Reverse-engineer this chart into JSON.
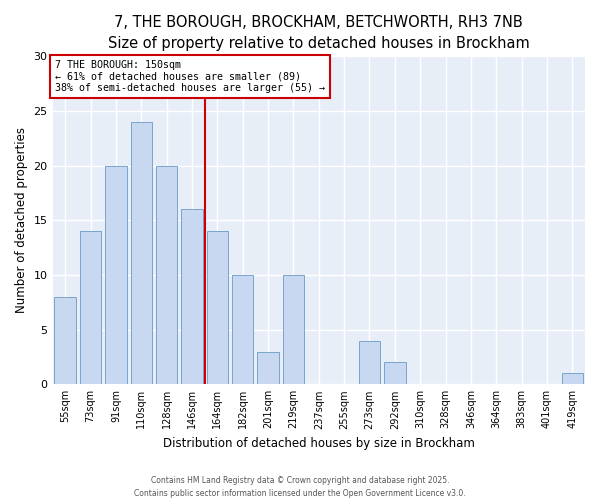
{
  "title": "7, THE BOROUGH, BROCKHAM, BETCHWORTH, RH3 7NB",
  "subtitle": "Size of property relative to detached houses in Brockham",
  "xlabel": "Distribution of detached houses by size in Brockham",
  "ylabel": "Number of detached properties",
  "bar_labels": [
    "55sqm",
    "73sqm",
    "91sqm",
    "110sqm",
    "128sqm",
    "146sqm",
    "164sqm",
    "182sqm",
    "201sqm",
    "219sqm",
    "237sqm",
    "255sqm",
    "273sqm",
    "292sqm",
    "310sqm",
    "328sqm",
    "346sqm",
    "364sqm",
    "383sqm",
    "401sqm",
    "419sqm"
  ],
  "bar_values": [
    8,
    14,
    20,
    24,
    20,
    16,
    14,
    10,
    3,
    10,
    0,
    0,
    4,
    2,
    0,
    0,
    0,
    0,
    0,
    0,
    1
  ],
  "bar_color": "#c8d8f0",
  "bar_edge_color": "#7aa4cc",
  "vline_x": 5.5,
  "vline_color": "#cc0000",
  "annotation_title": "7 THE BOROUGH: 150sqm",
  "annotation_line1": "← 61% of detached houses are smaller (89)",
  "annotation_line2": "38% of semi-detached houses are larger (55) →",
  "annotation_box_color": "#ffffff",
  "annotation_box_edge": "#cc0000",
  "ylim": [
    0,
    30
  ],
  "yticks": [
    0,
    5,
    10,
    15,
    20,
    25,
    30
  ],
  "footer1": "Contains HM Land Registry data © Crown copyright and database right 2025.",
  "footer2": "Contains public sector information licensed under the Open Government Licence v3.0.",
  "bg_color": "#ffffff",
  "plot_bg_color": "#e8eef8",
  "grid_color": "#ffffff",
  "title_fontsize": 10.5,
  "subtitle_fontsize": 9
}
